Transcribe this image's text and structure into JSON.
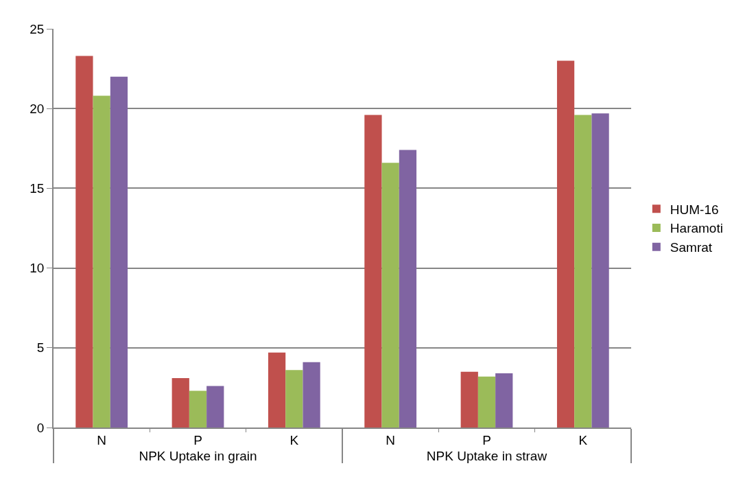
{
  "chart_data": {
    "type": "bar",
    "categories": [
      "N",
      "P",
      "K",
      "N",
      "P",
      "K"
    ],
    "annotations": [
      "NPK Uptake in grain",
      "NPK Uptake in straw"
    ],
    "series": [
      {
        "name": "HUM-16",
        "color": "#c0504d",
        "values": [
          23.3,
          3.1,
          4.7,
          19.6,
          3.5,
          23.0
        ]
      },
      {
        "name": "Haramoti",
        "color": "#9bbb59",
        "values": [
          20.8,
          2.3,
          3.6,
          16.6,
          3.2,
          19.6
        ]
      },
      {
        "name": "Samrat",
        "color": "#8064a2",
        "values": [
          22.0,
          2.6,
          4.1,
          17.4,
          3.4,
          19.7
        ]
      }
    ],
    "ylim": [
      0,
      25
    ],
    "yticks": [
      0,
      5,
      10,
      15,
      20,
      25
    ],
    "grid": "y",
    "legend": "right"
  }
}
